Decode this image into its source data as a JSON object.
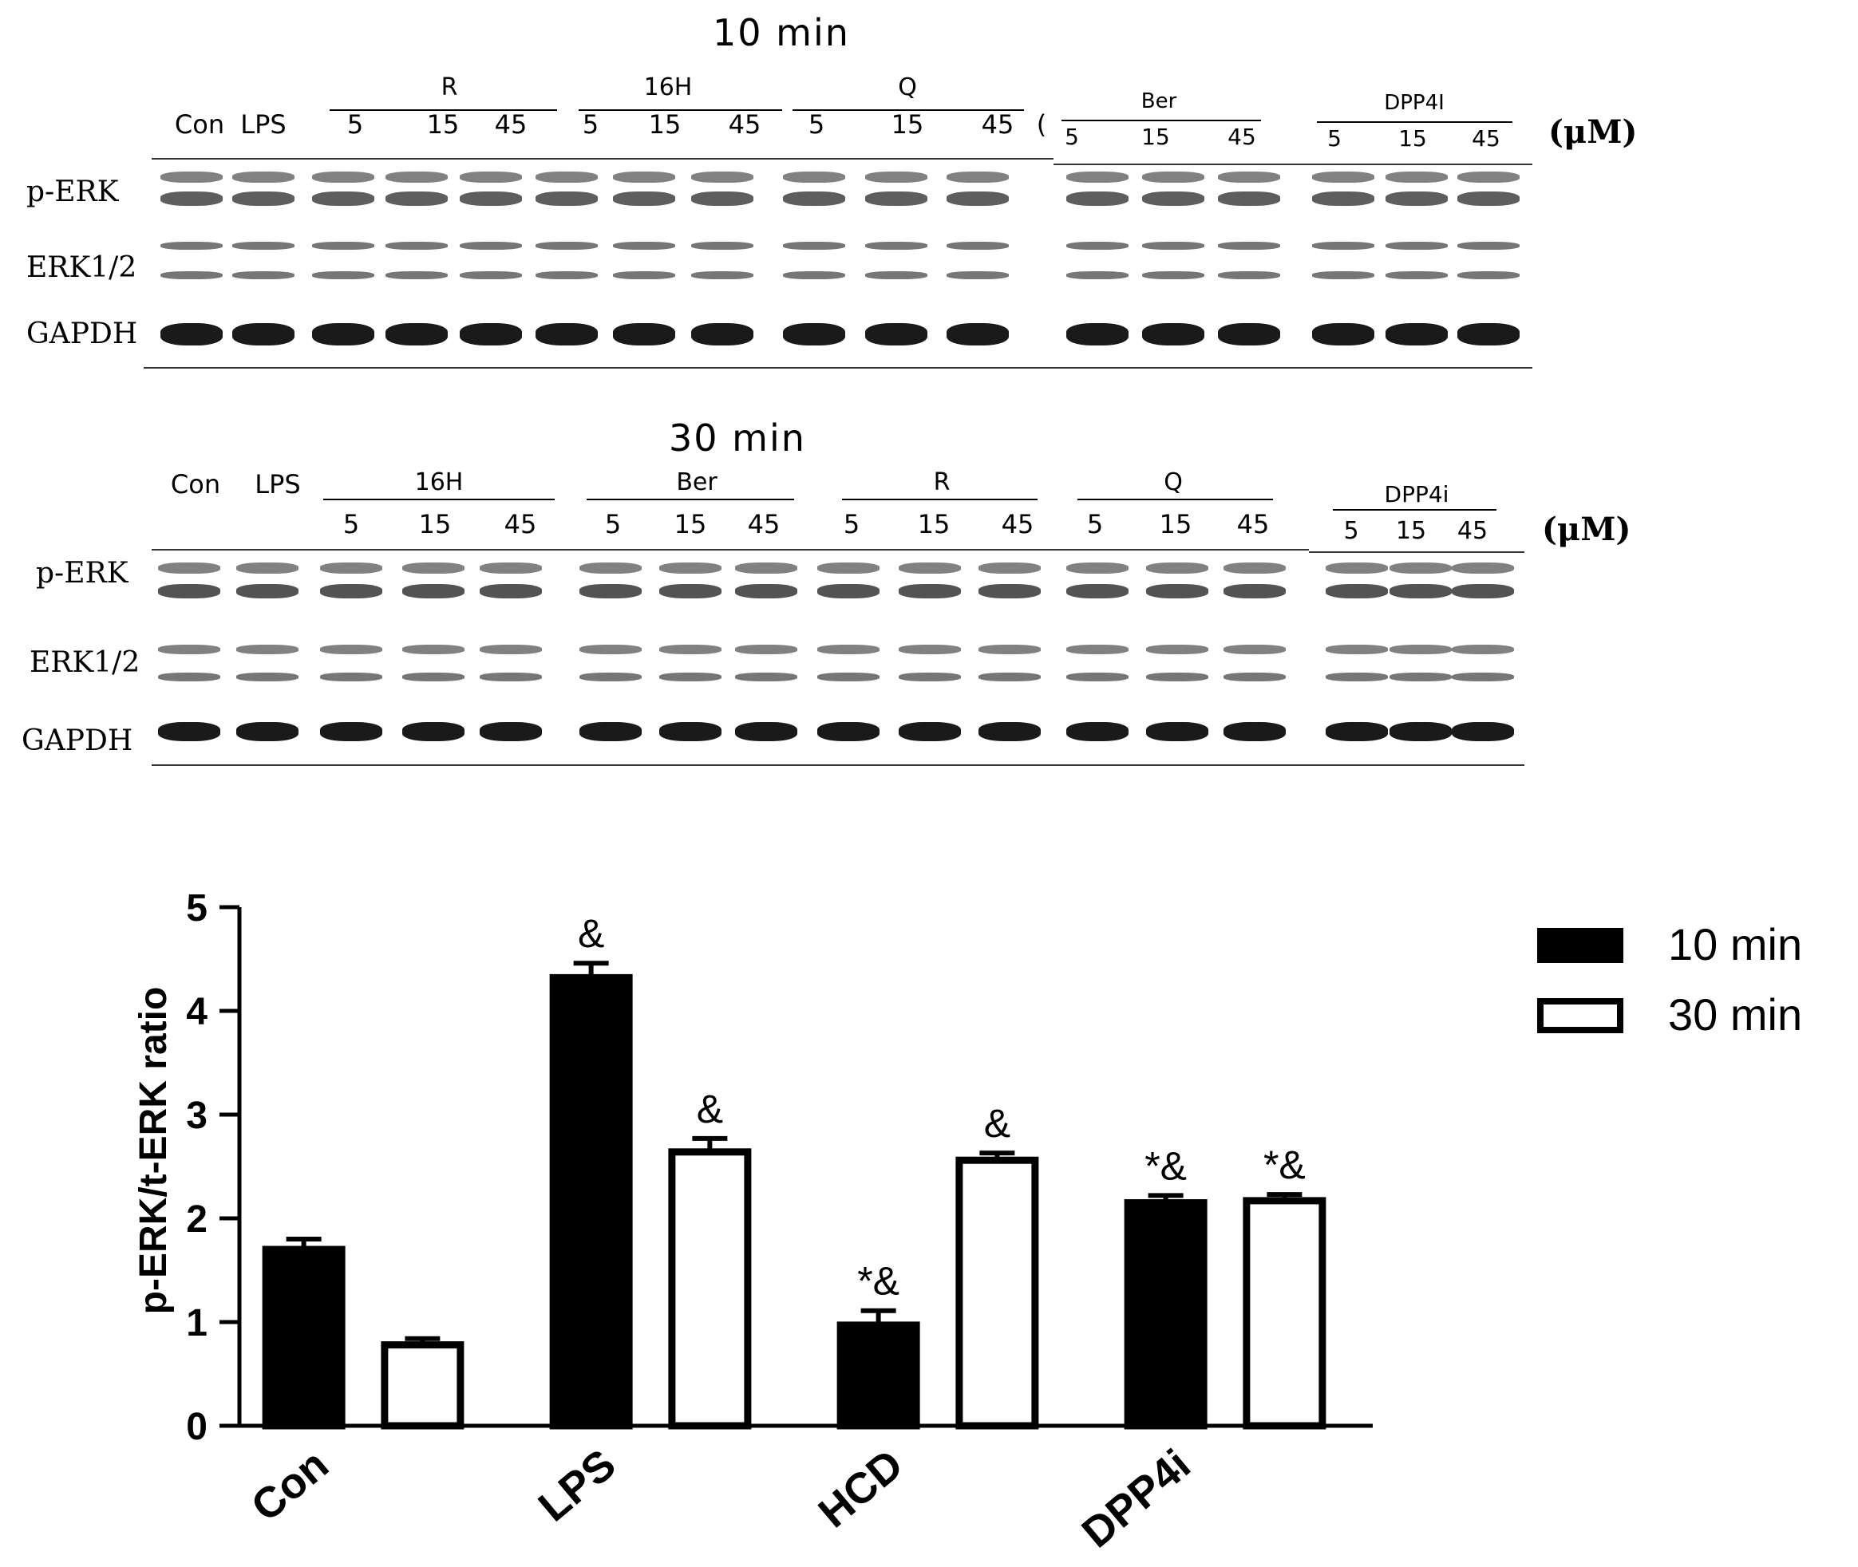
{
  "blot_top": {
    "title": "10 min",
    "single_lanes": [
      "Con",
      "LPS"
    ],
    "groups": [
      {
        "name": "R",
        "doses": [
          "5",
          "15",
          "45"
        ]
      },
      {
        "name": "16H",
        "doses": [
          "5",
          "15",
          "45"
        ]
      },
      {
        "name": "Q",
        "doses": [
          "5",
          "15",
          "45"
        ]
      },
      {
        "name": "Ber",
        "doses": [
          "5",
          "15",
          "45"
        ]
      },
      {
        "name": "DPP4I",
        "doses": [
          "5",
          "15",
          "45"
        ]
      }
    ],
    "stray_mark": "(",
    "unit": "(μM)",
    "rows": [
      "p-ERK",
      "ERK1/2",
      "GAPDH"
    ]
  },
  "blot_bottom": {
    "title": "30 min",
    "single_lanes": [
      "Con",
      "LPS"
    ],
    "groups": [
      {
        "name": "16H",
        "doses": [
          "5",
          "15",
          "45"
        ]
      },
      {
        "name": "Ber",
        "doses": [
          "5",
          "15",
          "45"
        ]
      },
      {
        "name": "R",
        "doses": [
          "5",
          "15",
          "45"
        ]
      },
      {
        "name": "Q",
        "doses": [
          "5",
          "15",
          "45"
        ]
      },
      {
        "name": "DPP4i",
        "doses": [
          "5",
          "15",
          "45"
        ]
      }
    ],
    "unit": "(μM)",
    "rows": [
      "p-ERK",
      "ERK1/2",
      "GAPDH"
    ]
  },
  "chart_data": {
    "type": "bar",
    "categories": [
      "Con",
      "LPS",
      "HCD",
      "DPP4i"
    ],
    "ylabel": "p-ERK/t-ERK ratio",
    "ylim": [
      0,
      5
    ],
    "yticks": [
      "0",
      "1",
      "2",
      "3",
      "4",
      "5"
    ],
    "series": [
      {
        "name": "10 min",
        "values": [
          1.7,
          4.32,
          0.97,
          2.15
        ],
        "errors": [
          0.1,
          0.14,
          0.14,
          0.07
        ],
        "annotations": [
          "",
          "&",
          "*&",
          "*&"
        ],
        "fill": "#000000"
      },
      {
        "name": "30 min",
        "values": [
          0.78,
          2.64,
          2.56,
          2.17
        ],
        "errors": [
          0.06,
          0.13,
          0.07,
          0.06
        ],
        "annotations": [
          "",
          "&",
          "&",
          "*&"
        ],
        "fill": "#ffffff"
      }
    ],
    "legend_position": "top-right"
  }
}
